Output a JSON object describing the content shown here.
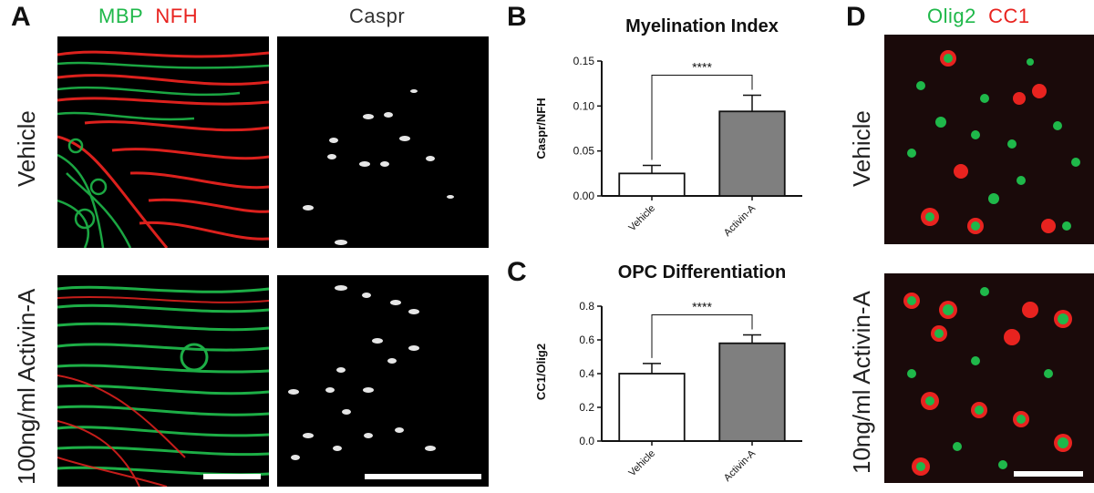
{
  "figure": {
    "panel_letters": {
      "a": "A",
      "b": "B",
      "c": "C",
      "d": "D"
    },
    "panel_a": {
      "header_left": {
        "stain1": "MBP",
        "stain2": "NFH"
      },
      "header_right": "Caspr",
      "row_labels": [
        "Vehicle",
        "100ng/ml Activin-A"
      ]
    },
    "panel_d": {
      "header": {
        "stain1": "Olig2",
        "stain2": "CC1"
      },
      "row_labels": [
        "Vehicle",
        "10ng/ml Activin-A"
      ]
    },
    "colors": {
      "green": "#1fb84a",
      "red": "#e8231f",
      "activin_bar": "#7f7f7f",
      "vehicle_bar": "#ffffff"
    }
  },
  "chart_data": [
    {
      "type": "bar",
      "title": "Myelination Index",
      "categories": [
        "Vehicle",
        "Activin-A"
      ],
      "values": [
        0.025,
        0.094
      ],
      "errors": [
        0.009,
        0.018
      ],
      "ylabel": "Caspr/NFH",
      "xlabel": "",
      "ylim": [
        0,
        0.15
      ],
      "yticks": [
        "0.00",
        "0.05",
        "0.10",
        "0.15"
      ],
      "ytick_values": [
        0,
        0.05,
        0.1,
        0.15
      ],
      "significance": "****"
    },
    {
      "type": "bar",
      "title": "OPC Differentiation",
      "categories": [
        "Vehicle",
        "Activin-A"
      ],
      "values": [
        0.4,
        0.58
      ],
      "errors": [
        0.06,
        0.05
      ],
      "ylabel": "CC1/Olig2",
      "xlabel": "",
      "ylim": [
        0,
        0.8
      ],
      "yticks": [
        "0.0",
        "0.2",
        "0.4",
        "0.6",
        "0.8"
      ],
      "ytick_values": [
        0,
        0.2,
        0.4,
        0.6,
        0.8
      ],
      "significance": "****"
    }
  ]
}
